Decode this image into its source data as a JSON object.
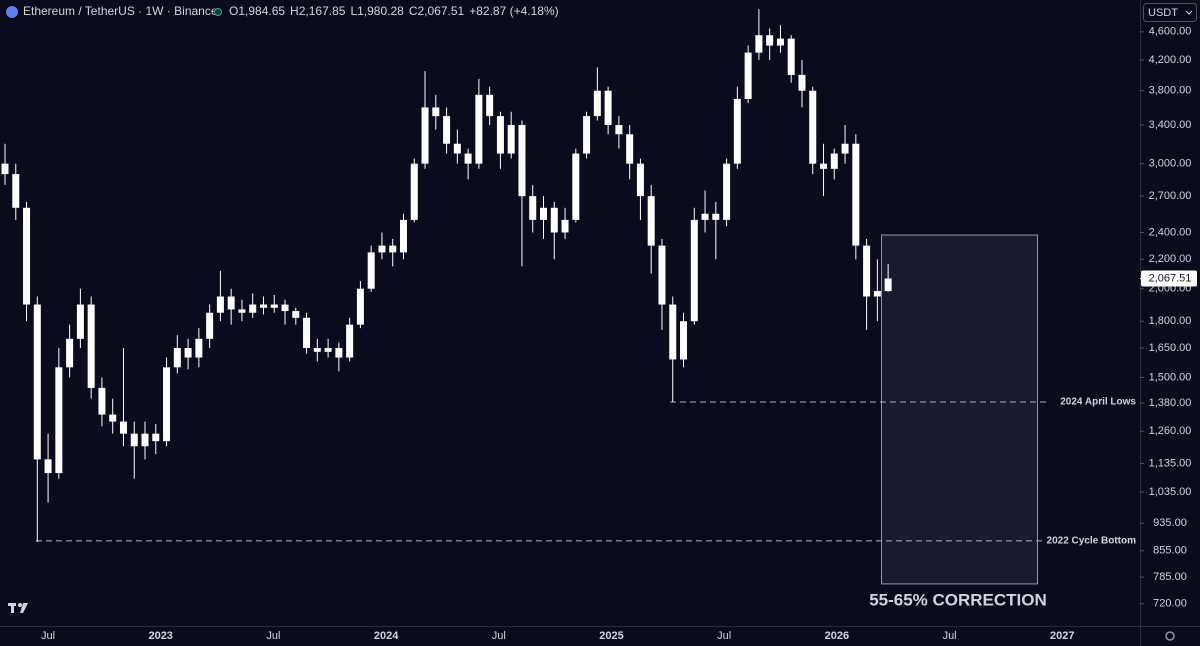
{
  "symbol": "Ethereum / TetherUS · 1W · Binance",
  "ohlc_text": [
    "O1,984.65",
    "H2,167.85",
    "L1,980.28",
    "C2,067.51",
    "+82.87 (+4.18%)"
  ],
  "currency": "USDT",
  "chart_data": {
    "type": "candlestick",
    "log_scale": true,
    "color": "#ffffff",
    "ylim": [
      670,
      5100
    ],
    "yticks": [
      {
        "value": 4600,
        "label": "4,600.00"
      },
      {
        "value": 4200,
        "label": "4,200.00"
      },
      {
        "value": 3800,
        "label": "3,800.00"
      },
      {
        "value": 3400,
        "label": "3,400.00"
      },
      {
        "value": 3000,
        "label": "3,000.00"
      },
      {
        "value": 2700,
        "label": "2,700.00"
      },
      {
        "value": 2400,
        "label": "2,400.00"
      },
      {
        "value": 2200,
        "label": "2,200.00"
      },
      {
        "value": 2000,
        "label": "2,000.00"
      },
      {
        "value": 1800,
        "label": "1,800.00"
      },
      {
        "value": 1650,
        "label": "1,650.00"
      },
      {
        "value": 1500,
        "label": "1,500.00"
      },
      {
        "value": 1380,
        "label": "1,380.00"
      },
      {
        "value": 1260,
        "label": "1,260.00"
      },
      {
        "value": 1135,
        "label": "1,135.00"
      },
      {
        "value": 1035,
        "label": "1,035.00"
      },
      {
        "value": 935,
        "label": "935.00"
      },
      {
        "value": 855,
        "label": "855.00"
      },
      {
        "value": 785,
        "label": "785.00"
      },
      {
        "value": 720,
        "label": "720.00"
      }
    ],
    "xlabels": [
      "Jul",
      "2023",
      "Jul",
      "2024",
      "Jul",
      "2025",
      "Jul",
      "2026",
      "Jul",
      "2027"
    ],
    "last_price_label": "2,067.51",
    "candles": [
      [
        3000,
        3200,
        2800,
        2900
      ],
      [
        2900,
        3000,
        2500,
        2600
      ],
      [
        2600,
        2650,
        1800,
        1900
      ],
      [
        1900,
        1950,
        880,
        1150
      ],
      [
        1150,
        1250,
        1000,
        1100
      ],
      [
        1100,
        1650,
        1080,
        1550
      ],
      [
        1550,
        1780,
        1500,
        1700
      ],
      [
        1700,
        2000,
        1650,
        1900
      ],
      [
        1900,
        1950,
        1400,
        1450
      ],
      [
        1450,
        1500,
        1280,
        1330
      ],
      [
        1330,
        1400,
        1250,
        1300
      ],
      [
        1300,
        1650,
        1200,
        1250
      ],
      [
        1250,
        1300,
        1080,
        1200
      ],
      [
        1200,
        1300,
        1150,
        1250
      ],
      [
        1250,
        1290,
        1170,
        1220
      ],
      [
        1220,
        1600,
        1200,
        1550
      ],
      [
        1550,
        1720,
        1520,
        1650
      ],
      [
        1650,
        1700,
        1540,
        1600
      ],
      [
        1600,
        1760,
        1550,
        1700
      ],
      [
        1700,
        1900,
        1650,
        1850
      ],
      [
        1850,
        2120,
        1800,
        1950
      ],
      [
        1950,
        2000,
        1780,
        1870
      ],
      [
        1870,
        1930,
        1800,
        1850
      ],
      [
        1850,
        1970,
        1820,
        1900
      ],
      [
        1900,
        1950,
        1840,
        1880
      ],
      [
        1880,
        1960,
        1850,
        1900
      ],
      [
        1900,
        1930,
        1780,
        1860
      ],
      [
        1860,
        1880,
        1780,
        1820
      ],
      [
        1820,
        1850,
        1620,
        1650
      ],
      [
        1650,
        1700,
        1580,
        1630
      ],
      [
        1630,
        1700,
        1600,
        1650
      ],
      [
        1650,
        1680,
        1530,
        1600
      ],
      [
        1600,
        1820,
        1580,
        1780
      ],
      [
        1780,
        2050,
        1760,
        2000
      ],
      [
        2000,
        2300,
        1980,
        2250
      ],
      [
        2250,
        2400,
        2200,
        2300
      ],
      [
        2300,
        2350,
        2150,
        2250
      ],
      [
        2250,
        2550,
        2200,
        2500
      ],
      [
        2500,
        3050,
        2480,
        3000
      ],
      [
        3000,
        4050,
        2950,
        3600
      ],
      [
        3600,
        3750,
        3350,
        3500
      ],
      [
        3500,
        3600,
        3100,
        3200
      ],
      [
        3200,
        3350,
        3000,
        3100
      ],
      [
        3100,
        3150,
        2850,
        3000
      ],
      [
        3000,
        3950,
        2950,
        3750
      ],
      [
        3750,
        3850,
        3400,
        3500
      ],
      [
        3500,
        3550,
        2950,
        3100
      ],
      [
        3100,
        3550,
        3050,
        3400
      ],
      [
        3400,
        3450,
        2150,
        2700
      ],
      [
        2700,
        2800,
        2400,
        2500
      ],
      [
        2500,
        2700,
        2350,
        2600
      ],
      [
        2600,
        2650,
        2200,
        2400
      ],
      [
        2400,
        2600,
        2350,
        2500
      ],
      [
        2500,
        3150,
        2480,
        3100
      ],
      [
        3100,
        3550,
        3050,
        3500
      ],
      [
        3500,
        4100,
        3450,
        3800
      ],
      [
        3800,
        3850,
        3300,
        3400
      ],
      [
        3400,
        3500,
        3150,
        3300
      ],
      [
        3300,
        3400,
        2850,
        3000
      ],
      [
        3000,
        3050,
        2500,
        2700
      ],
      [
        2700,
        2800,
        2100,
        2300
      ],
      [
        2300,
        2350,
        1750,
        1900
      ],
      [
        1900,
        1950,
        1385,
        1590
      ],
      [
        1590,
        1850,
        1550,
        1800
      ],
      [
        1800,
        2600,
        1780,
        2500
      ],
      [
        2500,
        2750,
        2400,
        2550
      ],
      [
        2550,
        2650,
        2200,
        2500
      ],
      [
        2500,
        3050,
        2450,
        3000
      ],
      [
        3000,
        3850,
        2950,
        3700
      ],
      [
        3700,
        4400,
        3650,
        4300
      ],
      [
        4300,
        4950,
        4200,
        4550
      ],
      [
        4550,
        4650,
        4200,
        4400
      ],
      [
        4400,
        4700,
        4300,
        4500
      ],
      [
        4500,
        4550,
        3900,
        4000
      ],
      [
        4000,
        4200,
        3600,
        3800
      ],
      [
        3800,
        3850,
        2900,
        3000
      ],
      [
        3000,
        3200,
        2700,
        2950
      ],
      [
        2950,
        3150,
        2850,
        3100
      ],
      [
        3100,
        3400,
        3000,
        3200
      ],
      [
        3200,
        3300,
        2200,
        2300
      ],
      [
        2300,
        2350,
        1750,
        1950
      ],
      [
        1950,
        2200,
        1800,
        1985
      ],
      [
        1984.65,
        2167.85,
        1980.28,
        2067.51
      ]
    ],
    "annotations": [
      {
        "label": "2024 April Lows",
        "value": 1385
      },
      {
        "label": "2022 Cycle Bottom",
        "value": 883
      }
    ],
    "box": {
      "top": 2380,
      "bottom": 768,
      "label": "55-65% CORRECTION"
    }
  }
}
